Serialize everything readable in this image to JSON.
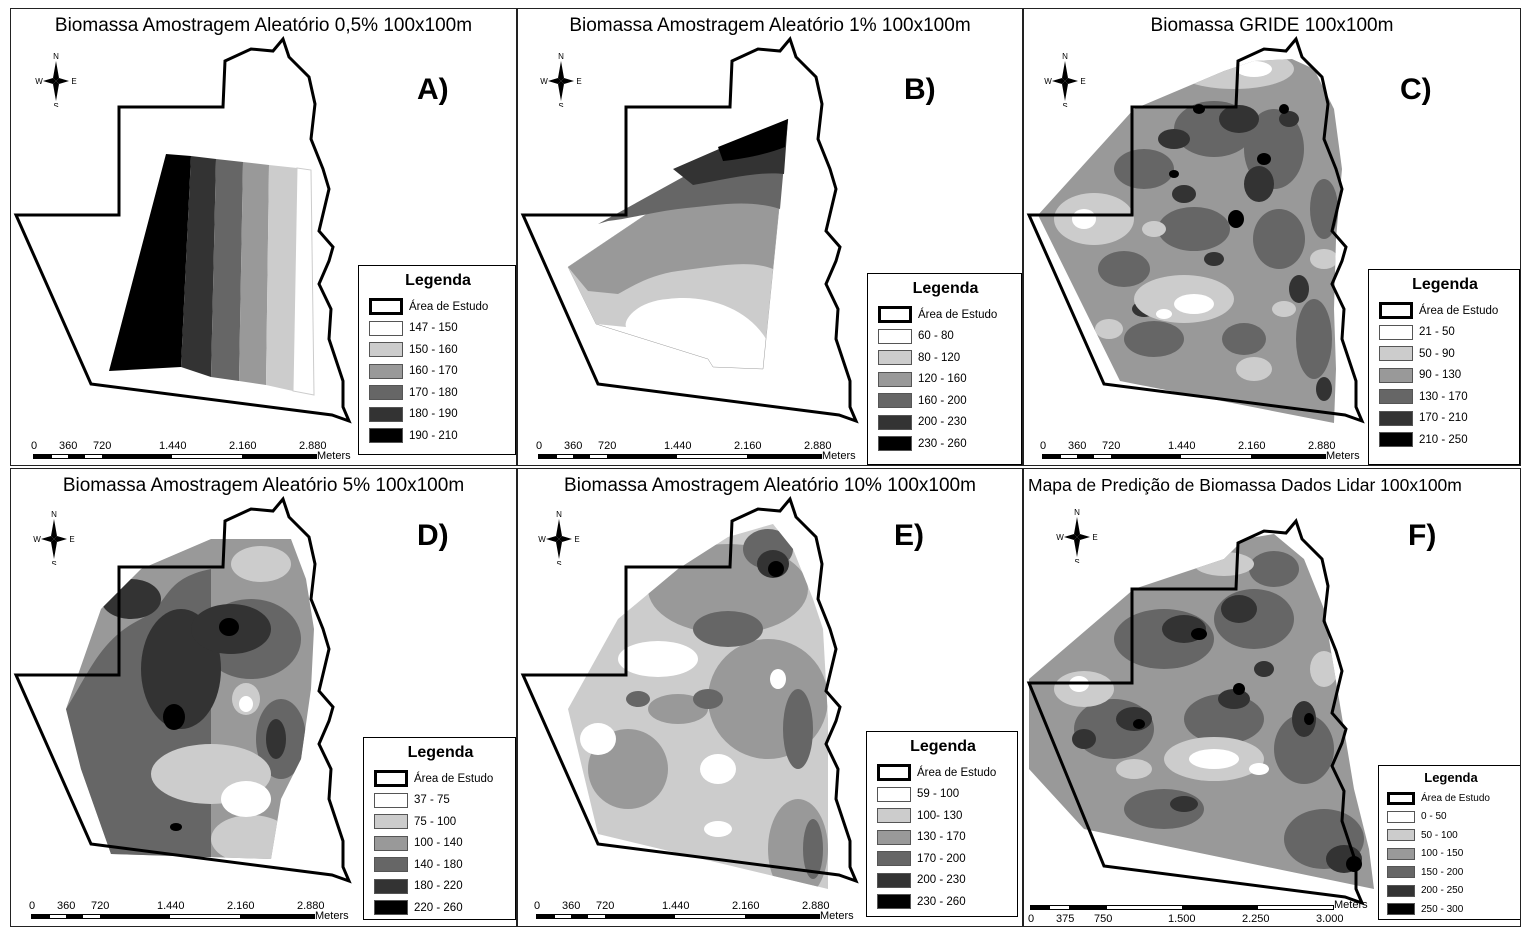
{
  "panels": [
    {
      "id": "A",
      "title": "Biomassa Amostragem Aleatório 0,5% 100x100m",
      "label": "A)",
      "legend": {
        "title": "Legenda",
        "study": "Área de Estudo",
        "classes": [
          {
            "label": "147 - 150",
            "color": "#ffffff"
          },
          {
            "label": "150 - 160",
            "color": "#cccccc"
          },
          {
            "label": "160 - 170",
            "color": "#999999"
          },
          {
            "label": "170 - 180",
            "color": "#666666"
          },
          {
            "label": "180 - 190",
            "color": "#333333"
          },
          {
            "label": "190 - 210",
            "color": "#000000"
          }
        ]
      },
      "scale": {
        "ticks": [
          "0",
          "360",
          "720",
          "1.440",
          "2.160",
          "2.880"
        ],
        "units": "Meters"
      }
    },
    {
      "id": "B",
      "title": "Biomassa Amostragem Aleatório 1% 100x100m",
      "label": "B)",
      "legend": {
        "title": "Legenda",
        "study": "Área de Estudo",
        "classes": [
          {
            "label": "60 - 80",
            "color": "#ffffff"
          },
          {
            "label": "80 - 120",
            "color": "#cccccc"
          },
          {
            "label": "120 - 160",
            "color": "#999999"
          },
          {
            "label": "160 - 200",
            "color": "#666666"
          },
          {
            "label": "200 - 230",
            "color": "#333333"
          },
          {
            "label": "230 - 260",
            "color": "#000000"
          }
        ]
      },
      "scale": {
        "ticks": [
          "0",
          "360",
          "720",
          "1.440",
          "2.160",
          "2.880"
        ],
        "units": "Meters"
      }
    },
    {
      "id": "C",
      "title": "Biomassa GRIDE 100x100m",
      "label": "C)",
      "legend": {
        "title": "Legenda",
        "study": "Área de Estudo",
        "classes": [
          {
            "label": "21 - 50",
            "color": "#ffffff"
          },
          {
            "label": "50 - 90",
            "color": "#cccccc"
          },
          {
            "label": "90 - 130",
            "color": "#999999"
          },
          {
            "label": "130 - 170",
            "color": "#666666"
          },
          {
            "label": "170 - 210",
            "color": "#333333"
          },
          {
            "label": "210 - 250",
            "color": "#000000"
          }
        ]
      },
      "scale": {
        "ticks": [
          "0",
          "360",
          "720",
          "1.440",
          "2.160",
          "2.880"
        ],
        "units": "Meters"
      }
    },
    {
      "id": "D",
      "title": "Biomassa Amostragem Aleatório 5% 100x100m",
      "label": "D)",
      "legend": {
        "title": "Legenda",
        "study": "Área de Estudo",
        "classes": [
          {
            "label": "37 - 75",
            "color": "#ffffff"
          },
          {
            "label": "75 - 100",
            "color": "#cccccc"
          },
          {
            "label": "100 - 140",
            "color": "#999999"
          },
          {
            "label": "140 - 180",
            "color": "#666666"
          },
          {
            "label": "180 - 220",
            "color": "#333333"
          },
          {
            "label": "220 - 260",
            "color": "#000000"
          }
        ]
      },
      "scale": {
        "ticks": [
          "0",
          "360",
          "720",
          "1.440",
          "2.160",
          "2.880"
        ],
        "units": "Meters"
      }
    },
    {
      "id": "E",
      "title": "Biomassa Amostragem Aleatório 10% 100x100m",
      "label": "E)",
      "legend": {
        "title": "Legenda",
        "study": "Área de Estudo",
        "classes": [
          {
            "label": "59 - 100",
            "color": "#ffffff"
          },
          {
            "label": "100- 130",
            "color": "#cccccc"
          },
          {
            "label": "130 - 170",
            "color": "#999999"
          },
          {
            "label": "170 - 200",
            "color": "#666666"
          },
          {
            "label": "200 - 230",
            "color": "#333333"
          },
          {
            "label": "230 - 260",
            "color": "#000000"
          }
        ]
      },
      "scale": {
        "ticks": [
          "0",
          "360",
          "720",
          "1.440",
          "2.160",
          "2.880"
        ],
        "units": "Meters"
      }
    },
    {
      "id": "F",
      "title": "Mapa de Predição de Biomassa Dados Lidar 100x100m",
      "label": "F)",
      "legend": {
        "title": "Legenda",
        "study": "Área de Estudo",
        "classes": [
          {
            "label": "0 - 50",
            "color": "#ffffff"
          },
          {
            "label": "50 - 100",
            "color": "#cccccc"
          },
          {
            "label": "100 - 150",
            "color": "#999999"
          },
          {
            "label": "150 - 200",
            "color": "#666666"
          },
          {
            "label": "200 - 250",
            "color": "#333333"
          },
          {
            "label": "250 - 300",
            "color": "#000000"
          }
        ]
      },
      "scale": {
        "ticks": [
          "0",
          "375",
          "750",
          "1.500",
          "2.250",
          "3.000"
        ],
        "units": "Meters"
      }
    }
  ],
  "compass": {
    "n": "N",
    "s": "S",
    "e": "E",
    "w": "W"
  }
}
